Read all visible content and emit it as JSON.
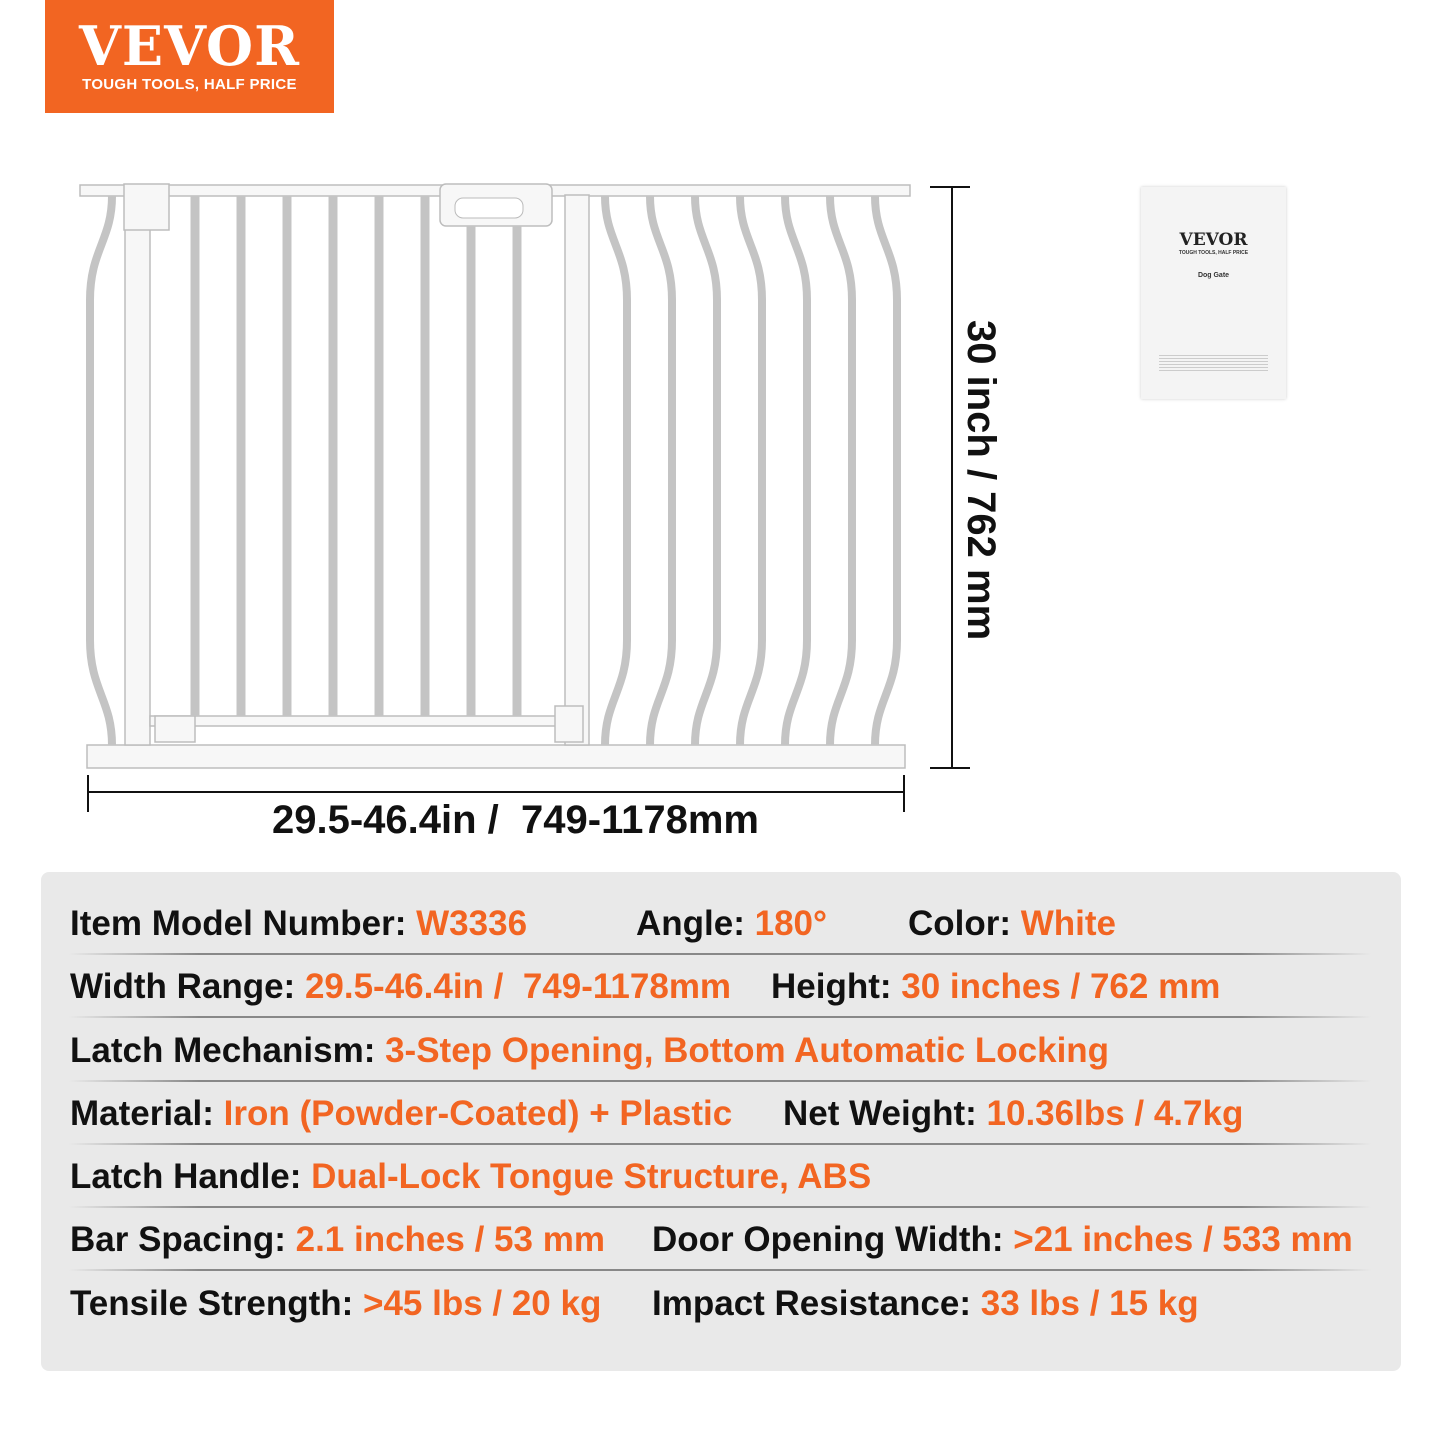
{
  "logo": {
    "brand": "VEVOR",
    "tagline": "TOUGH TOOLS, HALF PRICE"
  },
  "dimensions": {
    "width": "29.5-46.4in /  749-1178mm",
    "height": "30 inch / 762 mm"
  },
  "manual": {
    "brand": "VEVOR",
    "tagline": "TOUGH TOOLS, HALF PRICE",
    "title": "Dog Gate"
  },
  "colors": {
    "accent": "#f26522",
    "panel": "#e9e9e9",
    "text": "#111111"
  },
  "specs": [
    [
      {
        "label": "Item Model Number: ",
        "value": "W3336"
      },
      {
        "label": "Angle: ",
        "value": "180°"
      },
      {
        "label": "Color: ",
        "value": "White"
      }
    ],
    [
      {
        "label": "Width Range: ",
        "value": "29.5-46.4in /  749-1178mm"
      },
      {
        "label": "Height: ",
        "value": "30 inches / 762 mm"
      }
    ],
    [
      {
        "label": "Latch Mechanism: ",
        "value": "3-Step Opening, Bottom Automatic Locking"
      }
    ],
    [
      {
        "label": "Material: ",
        "value": "Iron (Powder-Coated) + Plastic"
      },
      {
        "label": "Net Weight: ",
        "value": "10.36lbs / 4.7kg"
      }
    ],
    [
      {
        "label": "Latch Handle: ",
        "value": "Dual-Lock Tongue Structure, ABS"
      }
    ],
    [
      {
        "label": "Bar Spacing: ",
        "value": "2.1 inches / 53 mm"
      },
      {
        "label": "Door Opening Width: ",
        "value": ">21 inches / 533 mm"
      }
    ],
    [
      {
        "label": "Tensile Strength: ",
        "value": ">45 lbs / 20 kg"
      },
      {
        "label": "Impact Resistance: ",
        "value": "33 lbs / 15 kg"
      }
    ]
  ]
}
